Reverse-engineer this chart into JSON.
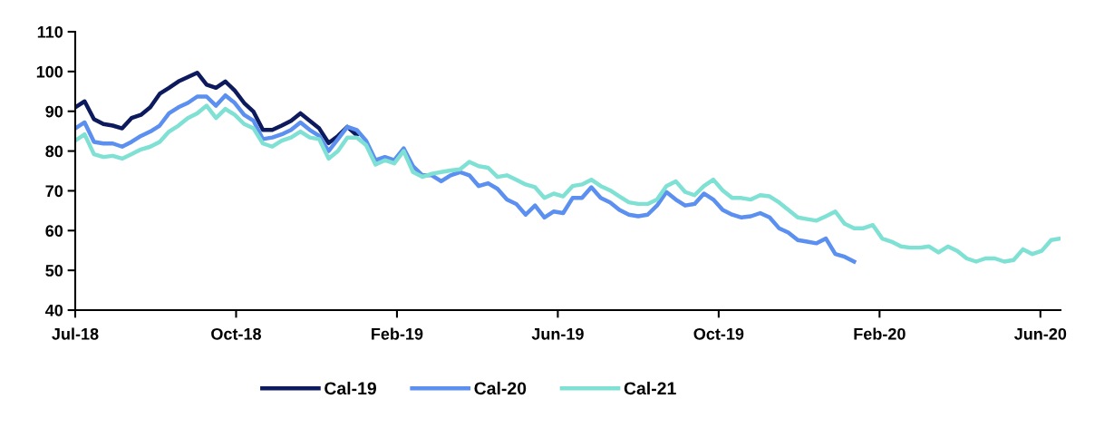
{
  "chart_data": {
    "type": "line",
    "x": [
      "2018-07-02",
      "2018-07-09",
      "2018-07-16",
      "2018-07-23",
      "2018-07-30",
      "2018-08-06",
      "2018-08-13",
      "2018-08-20",
      "2018-08-27",
      "2018-09-03",
      "2018-09-10",
      "2018-09-17",
      "2018-09-24",
      "2018-10-01",
      "2018-10-08",
      "2018-10-15",
      "2018-10-22",
      "2018-10-29",
      "2018-11-05",
      "2018-11-12",
      "2018-11-19",
      "2018-11-26",
      "2018-12-03",
      "2018-12-10",
      "2018-12-17",
      "2018-12-24",
      "2018-12-31",
      "2019-01-07",
      "2019-01-14",
      "2019-01-21",
      "2019-01-28",
      "2019-02-04",
      "2019-02-11",
      "2019-02-18",
      "2019-02-25",
      "2019-03-04",
      "2019-03-11",
      "2019-03-18",
      "2019-03-25",
      "2019-04-01",
      "2019-04-08",
      "2019-04-15",
      "2019-04-22",
      "2019-04-29",
      "2019-05-06",
      "2019-05-13",
      "2019-05-20",
      "2019-05-27",
      "2019-06-03",
      "2019-06-10",
      "2019-06-17",
      "2019-06-24",
      "2019-07-01",
      "2019-07-08",
      "2019-07-15",
      "2019-07-22",
      "2019-07-29",
      "2019-08-05",
      "2019-08-12",
      "2019-08-19",
      "2019-08-26",
      "2019-09-02",
      "2019-09-09",
      "2019-09-16",
      "2019-09-23",
      "2019-09-30",
      "2019-10-07",
      "2019-10-14",
      "2019-10-21",
      "2019-10-28",
      "2019-11-04",
      "2019-11-11",
      "2019-11-18",
      "2019-11-25",
      "2019-12-02",
      "2019-12-09",
      "2019-12-16",
      "2019-12-23",
      "2019-12-30",
      "2020-01-06",
      "2020-01-13",
      "2020-01-20",
      "2020-01-27",
      "2020-02-03",
      "2020-02-10",
      "2020-02-17",
      "2020-02-24",
      "2020-03-02",
      "2020-03-09",
      "2020-03-16",
      "2020-03-23",
      "2020-03-30",
      "2020-04-06",
      "2020-04-13",
      "2020-04-20",
      "2020-04-27",
      "2020-05-04",
      "2020-05-11",
      "2020-05-18",
      "2020-05-25",
      "2020-06-01",
      "2020-06-08",
      "2020-06-15",
      "2020-06-22",
      "2020-06-29",
      "2020-07-06"
    ],
    "series": [
      {
        "name": "Cal-19",
        "color": "#0d1b5e",
        "values": [
          91,
          92.5,
          88,
          86.8,
          86.4,
          85.7,
          88.3,
          89.1,
          91,
          94.4,
          95.9,
          97.5,
          98.6,
          99.7,
          96.7,
          95.9,
          97.5,
          95.2,
          92.1,
          89.9,
          85.3,
          85.3,
          86.4,
          87.6,
          89.5,
          87.6,
          85.7,
          82,
          83.8,
          86.1,
          84,
          null,
          null,
          null,
          null,
          null,
          null,
          null,
          null,
          null,
          null,
          null,
          null,
          null,
          null,
          null,
          null,
          null,
          null,
          null,
          null,
          null,
          null,
          null,
          null,
          null,
          null,
          null,
          null,
          null,
          null,
          null,
          null,
          null,
          null,
          null,
          null,
          null,
          null,
          null,
          null,
          null,
          null,
          null,
          null,
          null,
          null,
          null,
          null,
          null,
          null,
          null,
          null,
          null,
          null,
          null,
          null,
          null,
          null,
          null,
          null,
          null,
          null,
          null,
          null,
          null,
          null,
          null,
          null,
          null,
          null,
          null,
          null,
          null,
          null,
          null
        ]
      },
      {
        "name": "Cal-20",
        "color": "#5b8ff0",
        "values": [
          85.7,
          87.2,
          82.3,
          81.9,
          81.9,
          81.1,
          82.3,
          83.8,
          84.9,
          86.4,
          89.5,
          91,
          92.1,
          93.7,
          93.7,
          91.4,
          94,
          92.1,
          89.1,
          87.6,
          83,
          83.4,
          84.2,
          85.3,
          87.2,
          85.3,
          83.8,
          80,
          83,
          86.1,
          85.3,
          82.6,
          77.7,
          78.5,
          77.7,
          80.7,
          76.2,
          73.9,
          73.9,
          72.4,
          73.9,
          74.7,
          73.9,
          71.2,
          71.9,
          70.5,
          67.8,
          66.7,
          64,
          66.3,
          63.3,
          64.8,
          64.4,
          68.2,
          68.2,
          70.9,
          68.2,
          67.1,
          65.2,
          64,
          63.6,
          64,
          66.3,
          69.7,
          67.8,
          66.3,
          66.7,
          69.3,
          67.8,
          65.2,
          64,
          63.3,
          63.6,
          64.4,
          63.3,
          60.6,
          59.5,
          57.6,
          57.2,
          56.8,
          58,
          54.1,
          53.4,
          52.2,
          null,
          null,
          null,
          null,
          null,
          null,
          null,
          null,
          null,
          null,
          null,
          null,
          null,
          null,
          null,
          null,
          null,
          null,
          null,
          null,
          null,
          null
        ]
      },
      {
        "name": "Cal-21",
        "color": "#7fe0d4",
        "values": [
          82.6,
          84.2,
          79.2,
          78.5,
          78.8,
          78.1,
          79.2,
          80.4,
          81.1,
          82.3,
          84.9,
          86.4,
          88.3,
          89.5,
          91.4,
          88.3,
          90.6,
          89.1,
          86.8,
          85.7,
          81.9,
          81.1,
          82.6,
          83.4,
          84.9,
          83.4,
          83,
          78.1,
          80,
          83.4,
          83.4,
          81.5,
          76.6,
          77.7,
          76.9,
          80,
          74.7,
          73.5,
          74.3,
          74.7,
          75.1,
          75.4,
          77.3,
          76.2,
          75.8,
          73.5,
          73.9,
          72.8,
          71.6,
          70.9,
          68.2,
          69.3,
          68.6,
          71.2,
          71.6,
          72.8,
          71.2,
          70.1,
          68.6,
          67.1,
          66.7,
          66.7,
          67.8,
          71.2,
          72.4,
          69.7,
          68.9,
          71.2,
          72.8,
          70.1,
          68.2,
          68.2,
          67.8,
          68.9,
          68.6,
          67.1,
          65.2,
          63.3,
          62.9,
          62.5,
          63.6,
          64.8,
          61.7,
          60.6,
          60.6,
          61.4,
          58,
          57.2,
          56,
          55.7,
          55.7,
          56,
          54.5,
          56,
          54.9,
          53,
          52.2,
          53,
          53,
          52.2,
          52.6,
          55.3,
          54.1,
          54.9,
          57.6,
          58
        ]
      }
    ],
    "xlim": [
      "2018-07-02",
      "2020-07-06"
    ],
    "xticks": [
      {
        "value": "2018-07-02",
        "label": "Jul-18"
      },
      {
        "value": "2018-10-30",
        "label": "Oct-18"
      },
      {
        "value": "2019-02-27",
        "label": "Feb-19"
      },
      {
        "value": "2019-06-27",
        "label": "Jun-19"
      },
      {
        "value": "2019-10-25",
        "label": "Oct-19"
      },
      {
        "value": "2020-02-22",
        "label": "Feb-20"
      },
      {
        "value": "2020-06-21",
        "label": "Jun-20"
      }
    ],
    "ylim": [
      40,
      110
    ],
    "yticks": [
      40,
      50,
      60,
      70,
      80,
      90,
      100,
      110
    ],
    "grid": false,
    "legend": "bottom",
    "marker": "none",
    "line_style": "solid"
  }
}
